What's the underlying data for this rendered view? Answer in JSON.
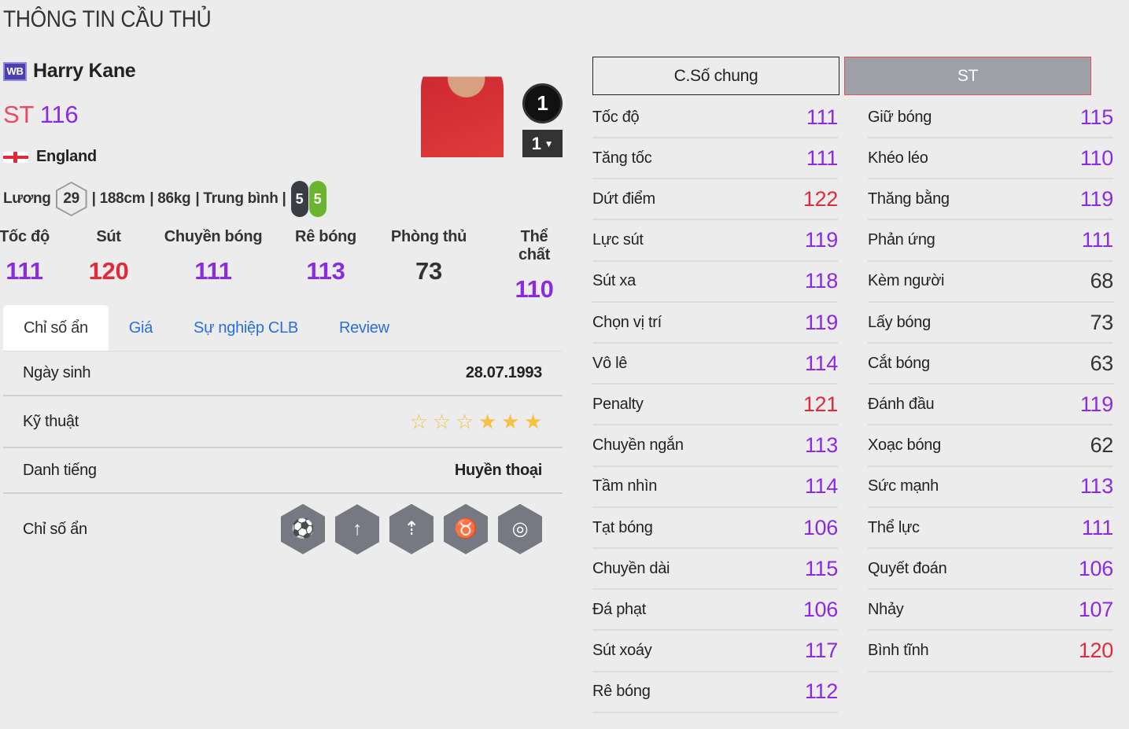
{
  "title": "THÔNG TIN CẦU THỦ",
  "colors": {
    "high": "#e02a3a",
    "mid": "#8a2be2",
    "low": "#333333",
    "accent_link": "#2a6fdb"
  },
  "player": {
    "season_badge": "WB",
    "name": "Harry Kane",
    "position": "ST",
    "ovr": "116",
    "nation": "England",
    "salary_label": "Lương",
    "salary": "29",
    "height": "| 188cm",
    "weight": "| 86kg",
    "body": "| Trung bình |",
    "left_foot": "5",
    "right_foot": "5",
    "number": "1",
    "level": "1"
  },
  "summary": [
    {
      "label": "Tốc độ",
      "value": 111
    },
    {
      "label": "Sút",
      "value": 120
    },
    {
      "label": "Chuyền bóng",
      "value": 111
    },
    {
      "label": "Rê bóng",
      "value": 113
    },
    {
      "label": "Phòng thủ",
      "value": 73
    },
    {
      "label": "Thể chất",
      "value": 110
    }
  ],
  "tabs": [
    "Chỉ số ẩn",
    "Giá",
    "Sự nghiệp CLB",
    "Review"
  ],
  "details": {
    "birth_label": "Ngày sinh",
    "birth": "28.07.1993",
    "skill_label": "Kỹ thuật",
    "skill_stars": 3,
    "skill_stars_max": 6,
    "rep_label": "Danh tiếng",
    "rep": "Huyền thoại",
    "traits_label": "Chỉ số ẩn",
    "traits": [
      "finesse-shot-icon",
      "long-shot-icon",
      "power-header-icon",
      "bull-strength-icon",
      "speed-boot-icon"
    ]
  },
  "stat_tabs": [
    "C.Số chung",
    "ST"
  ],
  "stats_left": [
    [
      "Tốc độ",
      111
    ],
    [
      "Tăng tốc",
      111
    ],
    [
      "Dứt điểm",
      122
    ],
    [
      "Lực sút",
      119
    ],
    [
      "Sút xa",
      118
    ],
    [
      "Chọn vị trí",
      119
    ],
    [
      "Vô lê",
      114
    ],
    [
      "Penalty",
      121
    ],
    [
      "Chuyền ngắn",
      113
    ],
    [
      "Tầm nhìn",
      114
    ],
    [
      "Tạt bóng",
      106
    ],
    [
      "Chuyền dài",
      115
    ],
    [
      "Đá phạt",
      106
    ],
    [
      "Sút xoáy",
      117
    ],
    [
      "Rê bóng",
      112
    ]
  ],
  "stats_right": [
    [
      "Giữ bóng",
      115
    ],
    [
      "Khéo léo",
      110
    ],
    [
      "Thăng bằng",
      119
    ],
    [
      "Phản ứng",
      111
    ],
    [
      "Kèm người",
      68
    ],
    [
      "Lấy bóng",
      73
    ],
    [
      "Cắt bóng",
      63
    ],
    [
      "Đánh đầu",
      119
    ],
    [
      "Xoạc bóng",
      62
    ],
    [
      "Sức mạnh",
      113
    ],
    [
      "Thể lực",
      111
    ],
    [
      "Quyết đoán",
      106
    ],
    [
      "Nhảy",
      107
    ],
    [
      "Bình tĩnh",
      120
    ]
  ]
}
